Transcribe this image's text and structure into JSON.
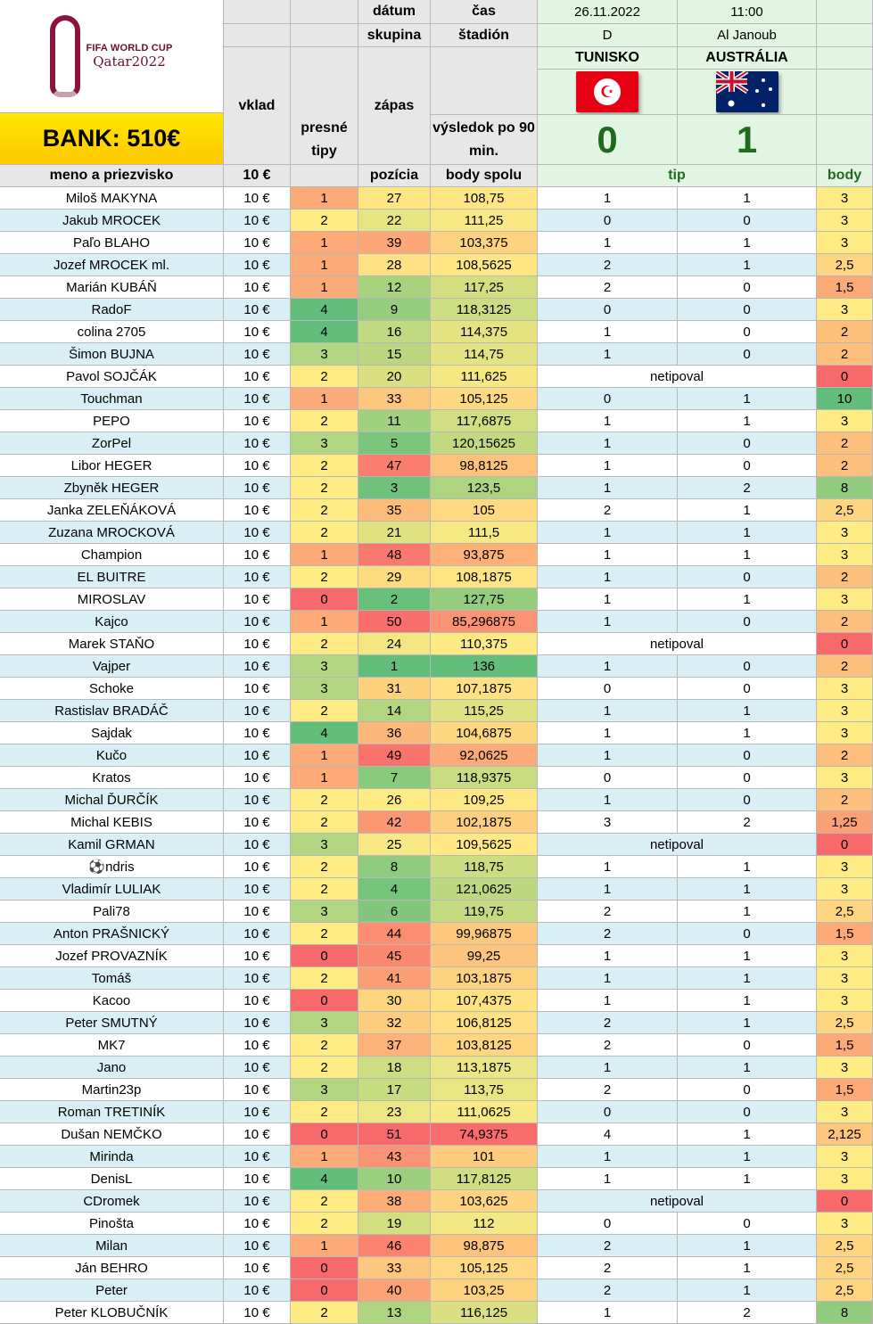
{
  "header": {
    "logo_line1": "FIFA WORLD CUP",
    "logo_line2": "Qatar2022",
    "bank": "BANK: 510€",
    "vklad": "vklad",
    "presne_tipy": "presné tipy",
    "datum": "dátum",
    "cas": "čas",
    "skupina": "skupina",
    "stadion": "štadión",
    "zapas": "zápas",
    "vysledok": "výsledok po 90 min.",
    "meno": "meno a priezvisko",
    "stake": "10 €",
    "pozicia": "pozícia",
    "body_spolu": "body spolu",
    "tip": "tip",
    "body": "body"
  },
  "match": {
    "date": "26.11.2022",
    "time": "11:00",
    "group": "D",
    "stadium": "Al Janoub",
    "home_team": "TUNISKO",
    "away_team": "AUSTRÁLIA",
    "home_score": "0",
    "away_score": "1",
    "home_flag": "tunisia-flag",
    "away_flag": "australia-flag"
  },
  "colors": {
    "name_light": "#ffffff",
    "name_blue": "#d9eff6",
    "header_green": "#e2f5e2",
    "score_green": "#1e6b1e",
    "bank_yellow": "#ffd700",
    "gray_header": "#e7e7e7"
  },
  "rows": [
    {
      "name": "Miloš MAKYNA",
      "stake": "10 €",
      "exact": "1",
      "pos": "27",
      "total": "108,75",
      "tip_home": "1",
      "tip_away": "1",
      "points": "3"
    },
    {
      "name": "Jakub MROCEK",
      "stake": "10 €",
      "exact": "2",
      "pos": "22",
      "total": "111,25",
      "tip_home": "0",
      "tip_away": "0",
      "points": "3"
    },
    {
      "name": "Paľo BLAHO",
      "stake": "10 €",
      "exact": "1",
      "pos": "39",
      "total": "103,375",
      "tip_home": "1",
      "tip_away": "1",
      "points": "3"
    },
    {
      "name": "Jozef MROCEK ml.",
      "stake": "10 €",
      "exact": "1",
      "pos": "28",
      "total": "108,5625",
      "tip_home": "2",
      "tip_away": "1",
      "points": "2,5"
    },
    {
      "name": "Marián KUBÁŇ",
      "stake": "10 €",
      "exact": "1",
      "pos": "12",
      "total": "117,25",
      "tip_home": "2",
      "tip_away": "0",
      "points": "1,5"
    },
    {
      "name": "RadoF",
      "stake": "10 €",
      "exact": "4",
      "pos": "9",
      "total": "118,3125",
      "tip_home": "0",
      "tip_away": "0",
      "points": "3"
    },
    {
      "name": "colina 2705",
      "stake": "10 €",
      "exact": "4",
      "pos": "16",
      "total": "114,375",
      "tip_home": "1",
      "tip_away": "0",
      "points": "2"
    },
    {
      "name": "Šimon BUJNA",
      "stake": "10 €",
      "exact": "3",
      "pos": "15",
      "total": "114,75",
      "tip_home": "1",
      "tip_away": "0",
      "points": "2"
    },
    {
      "name": "Pavol SOJČÁK",
      "stake": "10 €",
      "exact": "2",
      "pos": "20",
      "total": "111,625",
      "tip": "netipoval",
      "points": "0"
    },
    {
      "name": "Touchman",
      "stake": "10 €",
      "exact": "1",
      "pos": "33",
      "total": "105,125",
      "tip_home": "0",
      "tip_away": "1",
      "points": "10"
    },
    {
      "name": "PEPO",
      "stake": "10 €",
      "exact": "2",
      "pos": "11",
      "total": "117,6875",
      "tip_home": "1",
      "tip_away": "1",
      "points": "3"
    },
    {
      "name": "ZorPel",
      "stake": "10 €",
      "exact": "3",
      "pos": "5",
      "total": "120,15625",
      "tip_home": "1",
      "tip_away": "0",
      "points": "2"
    },
    {
      "name": "Libor HEGER",
      "stake": "10 €",
      "exact": "2",
      "pos": "47",
      "total": "98,8125",
      "tip_home": "1",
      "tip_away": "0",
      "points": "2"
    },
    {
      "name": "Zbyněk HEGER",
      "stake": "10 €",
      "exact": "2",
      "pos": "3",
      "total": "123,5",
      "tip_home": "1",
      "tip_away": "2",
      "points": "8"
    },
    {
      "name": "Janka ZELEŇÁKOVÁ",
      "stake": "10 €",
      "exact": "2",
      "pos": "35",
      "total": "105",
      "tip_home": "2",
      "tip_away": "1",
      "points": "2,5"
    },
    {
      "name": "Zuzana MROCKOVÁ",
      "stake": "10 €",
      "exact": "2",
      "pos": "21",
      "total": "111,5",
      "tip_home": "1",
      "tip_away": "1",
      "points": "3"
    },
    {
      "name": "Champion",
      "stake": "10 €",
      "exact": "1",
      "pos": "48",
      "total": "93,875",
      "tip_home": "1",
      "tip_away": "1",
      "points": "3"
    },
    {
      "name": "EL BUITRE",
      "stake": "10 €",
      "exact": "2",
      "pos": "29",
      "total": "108,1875",
      "tip_home": "1",
      "tip_away": "0",
      "points": "2"
    },
    {
      "name": "MIROSLAV",
      "stake": "10 €",
      "exact": "0",
      "pos": "2",
      "total": "127,75",
      "tip_home": "1",
      "tip_away": "1",
      "points": "3"
    },
    {
      "name": "Kajco",
      "stake": "10 €",
      "exact": "1",
      "pos": "50",
      "total": "85,296875",
      "tip_home": "1",
      "tip_away": "0",
      "points": "2"
    },
    {
      "name": "Marek STAŇO",
      "stake": "10 €",
      "exact": "2",
      "pos": "24",
      "total": "110,375",
      "tip": "netipoval",
      "points": "0"
    },
    {
      "name": "Vajper",
      "stake": "10 €",
      "exact": "3",
      "pos": "1",
      "total": "136",
      "tip_home": "1",
      "tip_away": "0",
      "points": "2"
    },
    {
      "name": "Schoke",
      "stake": "10 €",
      "exact": "3",
      "pos": "31",
      "total": "107,1875",
      "tip_home": "0",
      "tip_away": "0",
      "points": "3"
    },
    {
      "name": "Rastislav BRADÁČ",
      "stake": "10 €",
      "exact": "2",
      "pos": "14",
      "total": "115,25",
      "tip_home": "1",
      "tip_away": "1",
      "points": "3"
    },
    {
      "name": "Sajdak",
      "stake": "10 €",
      "exact": "4",
      "pos": "36",
      "total": "104,6875",
      "tip_home": "1",
      "tip_away": "1",
      "points": "3"
    },
    {
      "name": "Kučo",
      "stake": "10 €",
      "exact": "1",
      "pos": "49",
      "total": "92,0625",
      "tip_home": "1",
      "tip_away": "0",
      "points": "2"
    },
    {
      "name": "Kratos",
      "stake": "10 €",
      "exact": "1",
      "pos": "7",
      "total": "118,9375",
      "tip_home": "0",
      "tip_away": "0",
      "points": "3"
    },
    {
      "name": "Michal ĎURČÍK",
      "stake": "10 €",
      "exact": "2",
      "pos": "26",
      "total": "109,25",
      "tip_home": "1",
      "tip_away": "0",
      "points": "2"
    },
    {
      "name": "Michal KEBIS",
      "stake": "10 €",
      "exact": "2",
      "pos": "42",
      "total": "102,1875",
      "tip_home": "3",
      "tip_away": "2",
      "points": "1,25"
    },
    {
      "name": "Kamil GRMAN",
      "stake": "10 €",
      "exact": "3",
      "pos": "25",
      "total": "109,5625",
      "tip": "netipoval",
      "points": "0"
    },
    {
      "name": "⚽ndris",
      "stake": "10 €",
      "exact": "2",
      "pos": "8",
      "total": "118,75",
      "tip_home": "1",
      "tip_away": "1",
      "points": "3"
    },
    {
      "name": "Vladimír LULIAK",
      "stake": "10 €",
      "exact": "2",
      "pos": "4",
      "total": "121,0625",
      "tip_home": "1",
      "tip_away": "1",
      "points": "3"
    },
    {
      "name": "Pali78",
      "stake": "10 €",
      "exact": "3",
      "pos": "6",
      "total": "119,75",
      "tip_home": "2",
      "tip_away": "1",
      "points": "2,5"
    },
    {
      "name": "Anton PRAŠNICKÝ",
      "stake": "10 €",
      "exact": "2",
      "pos": "44",
      "total": "99,96875",
      "tip_home": "2",
      "tip_away": "0",
      "points": "1,5"
    },
    {
      "name": "Jozef PROVAZNÍK",
      "stake": "10 €",
      "exact": "0",
      "pos": "45",
      "total": "99,25",
      "tip_home": "1",
      "tip_away": "1",
      "points": "3"
    },
    {
      "name": "Tomáš",
      "stake": "10 €",
      "exact": "2",
      "pos": "41",
      "total": "103,1875",
      "tip_home": "1",
      "tip_away": "1",
      "points": "3"
    },
    {
      "name": "Kacoo",
      "stake": "10 €",
      "exact": "0",
      "pos": "30",
      "total": "107,4375",
      "tip_home": "1",
      "tip_away": "1",
      "points": "3"
    },
    {
      "name": "Peter SMUTNÝ",
      "stake": "10 €",
      "exact": "3",
      "pos": "32",
      "total": "106,8125",
      "tip_home": "2",
      "tip_away": "1",
      "points": "2,5"
    },
    {
      "name": "MK7",
      "stake": "10 €",
      "exact": "2",
      "pos": "37",
      "total": "103,8125",
      "tip_home": "2",
      "tip_away": "0",
      "points": "1,5"
    },
    {
      "name": "Jano",
      "stake": "10 €",
      "exact": "2",
      "pos": "18",
      "total": "113,1875",
      "tip_home": "1",
      "tip_away": "1",
      "points": "3"
    },
    {
      "name": "Martin23p",
      "stake": "10 €",
      "exact": "3",
      "pos": "17",
      "total": "113,75",
      "tip_home": "2",
      "tip_away": "0",
      "points": "1,5"
    },
    {
      "name": "Roman TRETINÍK",
      "stake": "10 €",
      "exact": "2",
      "pos": "23",
      "total": "111,0625",
      "tip_home": "0",
      "tip_away": "0",
      "points": "3"
    },
    {
      "name": "Dušan NEMČKO",
      "stake": "10 €",
      "exact": "0",
      "pos": "51",
      "total": "74,9375",
      "tip_home": "4",
      "tip_away": "1",
      "points": "2,125"
    },
    {
      "name": "Mirinda",
      "stake": "10 €",
      "exact": "1",
      "pos": "43",
      "total": "101",
      "tip_home": "1",
      "tip_away": "1",
      "points": "3"
    },
    {
      "name": "DenisL",
      "stake": "10 €",
      "exact": "4",
      "pos": "10",
      "total": "117,8125",
      "tip_home": "1",
      "tip_away": "1",
      "points": "3"
    },
    {
      "name": "CDromek",
      "stake": "10 €",
      "exact": "2",
      "pos": "38",
      "total": "103,625",
      "tip": "netipoval",
      "points": "0"
    },
    {
      "name": "Pinošta",
      "stake": "10 €",
      "exact": "2",
      "pos": "19",
      "total": "112",
      "tip_home": "0",
      "tip_away": "0",
      "points": "3"
    },
    {
      "name": "Milan",
      "stake": "10 €",
      "exact": "1",
      "pos": "46",
      "total": "98,875",
      "tip_home": "2",
      "tip_away": "1",
      "points": "2,5"
    },
    {
      "name": "Ján BEHRO",
      "stake": "10 €",
      "exact": "0",
      "pos": "33",
      "total": "105,125",
      "tip_home": "2",
      "tip_away": "1",
      "points": "2,5"
    },
    {
      "name": "Peter",
      "stake": "10 €",
      "exact": "0",
      "pos": "40",
      "total": "103,25",
      "tip_home": "2",
      "tip_away": "1",
      "points": "2,5"
    },
    {
      "name": "Peter KLOBUČNÍK",
      "stake": "10 €",
      "exact": "2",
      "pos": "13",
      "total": "116,125",
      "tip_home": "1",
      "tip_away": "2",
      "points": "8"
    }
  ]
}
